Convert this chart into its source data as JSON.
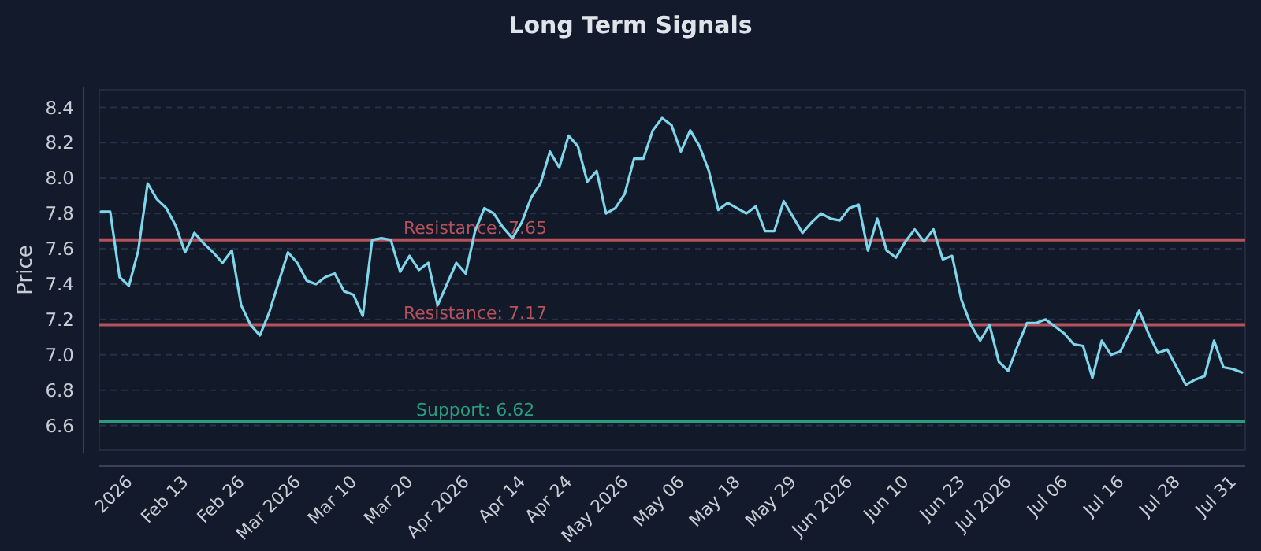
{
  "chart_data": {
    "type": "line",
    "title": "Long Term Signals",
    "ylabel": "Price",
    "categories": [
      null,
      null,
      null,
      "2026",
      null,
      null,
      null,
      null,
      null,
      "Feb 13",
      null,
      null,
      null,
      null,
      null,
      "Feb 26",
      null,
      null,
      null,
      null,
      null,
      "Mar 2026",
      null,
      null,
      null,
      null,
      null,
      "Mar 10",
      null,
      null,
      null,
      null,
      null,
      "Mar 20",
      null,
      null,
      null,
      null,
      null,
      "Apr 2026",
      null,
      null,
      null,
      null,
      null,
      "Apr 14",
      null,
      null,
      null,
      null,
      "Apr 24",
      null,
      null,
      null,
      null,
      null,
      "May 2026",
      null,
      null,
      null,
      null,
      null,
      "May 06",
      null,
      null,
      null,
      null,
      null,
      "May 18",
      null,
      null,
      null,
      null,
      null,
      "May 29",
      null,
      null,
      null,
      null,
      null,
      "Jun 2026",
      null,
      null,
      null,
      null,
      null,
      "Jun 10",
      null,
      null,
      null,
      null,
      null,
      "Jun 23",
      null,
      null,
      null,
      null,
      "Jul 2026",
      null,
      null,
      null,
      null,
      null,
      "Jul 06",
      null,
      null,
      null,
      null,
      null,
      "Jul 16",
      null,
      null,
      null,
      null,
      null,
      "Jul 28",
      null,
      null,
      null,
      null,
      null,
      "Jul 31",
      null
    ],
    "series": [
      {
        "color": "#7fd6ea",
        "values": [
          7.81,
          7.81,
          7.44,
          7.39,
          7.59,
          7.97,
          7.88,
          7.83,
          7.73,
          7.58,
          7.69,
          7.63,
          7.58,
          7.52,
          7.59,
          7.28,
          7.17,
          7.11,
          7.24,
          7.41,
          7.58,
          7.52,
          7.42,
          7.4,
          7.44,
          7.46,
          7.36,
          7.34,
          7.22,
          7.65,
          7.66,
          7.65,
          7.47,
          7.56,
          7.48,
          7.52,
          7.28,
          7.4,
          7.52,
          7.46,
          7.7,
          7.83,
          7.8,
          7.72,
          7.66,
          7.75,
          7.89,
          7.97,
          8.15,
          8.06,
          8.24,
          8.18,
          7.98,
          8.04,
          7.8,
          7.83,
          7.91,
          8.11,
          8.11,
          8.27,
          8.34,
          8.3,
          8.15,
          8.27,
          8.18,
          8.04,
          7.82,
          7.86,
          7.83,
          7.8,
          7.84,
          7.7,
          7.7,
          7.87,
          7.78,
          7.69,
          7.75,
          7.8,
          7.77,
          7.76,
          7.83,
          7.85,
          7.59,
          7.77,
          7.59,
          7.55,
          7.64,
          7.71,
          7.64,
          7.71,
          7.54,
          7.56,
          7.31,
          7.17,
          7.08,
          7.17,
          6.96,
          6.91,
          7.05,
          7.18,
          7.18,
          7.2,
          7.16,
          7.12,
          7.06,
          7.05,
          6.87,
          7.08,
          7.0,
          7.02,
          7.13,
          7.25,
          7.12,
          7.01,
          7.03,
          6.93,
          6.83,
          6.86,
          6.88,
          7.08,
          6.93,
          6.92,
          6.9
        ]
      }
    ],
    "ylim": [
      6.46,
      8.5
    ],
    "yticks": [
      6.6,
      6.8,
      {
        "value": 7,
        "label": "7.0"
      },
      7.2,
      7.4,
      7.6,
      7.8,
      {
        "value": 8,
        "label": "8.0"
      },
      8.2,
      8.4
    ],
    "grid": "y",
    "ref_lines": [
      {
        "axis": "y",
        "value": 7.65,
        "label": "Resistance: 7.65",
        "color": "#b5525c"
      },
      {
        "axis": "y",
        "value": 7.17,
        "label": "Resistance: 7.17",
        "color": "#b5525c"
      },
      {
        "axis": "y",
        "value": 6.62,
        "label": "Support: 6.62",
        "color": "#2a9d7f"
      }
    ]
  }
}
